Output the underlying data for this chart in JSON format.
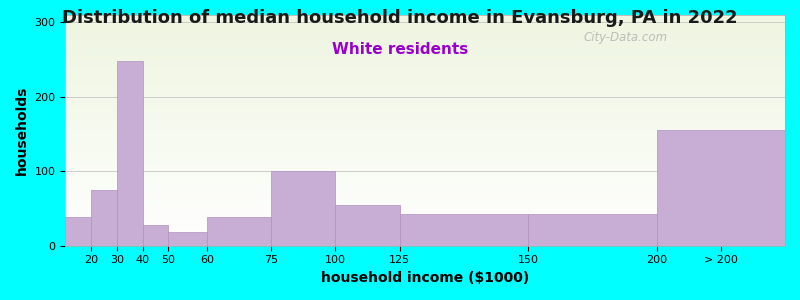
{
  "title": "Distribution of median household income in Evansburg, PA in 2022",
  "subtitle": "White residents",
  "xlabel": "household income ($1000)",
  "ylabel": "households",
  "background_color": "#00FFFF",
  "plot_bg_gradient_top": "#eef5e0",
  "plot_bg_gradient_bottom": "#ffffff",
  "bar_color": "#c8aed4",
  "bar_edge_color": "#b090c0",
  "categories": [
    "20",
    "30",
    "40",
    "50",
    "60",
    "75",
    "100",
    "125",
    "150",
    "200",
    "> 200"
  ],
  "values": [
    38,
    75,
    248,
    28,
    18,
    38,
    100,
    55,
    42,
    42,
    155
  ],
  "ylim": [
    0,
    310
  ],
  "yticks": [
    0,
    100,
    200,
    300
  ],
  "title_fontsize": 13,
  "subtitle_fontsize": 11,
  "subtitle_color": "#9900cc",
  "axis_label_fontsize": 10,
  "watermark_text": "City-Data.com",
  "grid_color": "#cccccc",
  "boundaries": [
    0,
    10,
    20,
    30,
    40,
    55,
    80,
    105,
    130,
    180,
    230,
    280
  ],
  "xtick_pos": [
    10,
    20,
    30,
    40,
    55,
    80,
    105,
    130,
    180,
    230,
    255
  ]
}
